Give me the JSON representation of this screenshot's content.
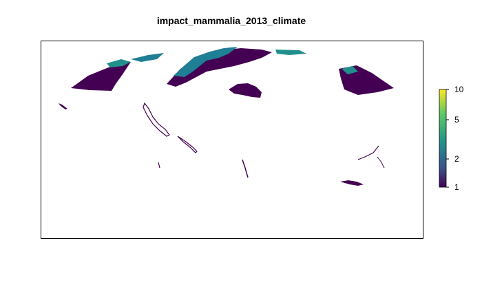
{
  "title": "impact_mammalia_2013_climate",
  "legend": {
    "scale": "log",
    "range": [
      1,
      10
    ],
    "ticks": [
      "10",
      "5",
      "2",
      "1"
    ],
    "palette": "viridis",
    "colors": {
      "low": "#440154",
      "mid": "#21908C",
      "high": "#FDE725"
    }
  },
  "map": {
    "type": "raster",
    "background": "#ffffff",
    "dominant_color": "#440154",
    "secondary_color": "#1F7F94"
  }
}
